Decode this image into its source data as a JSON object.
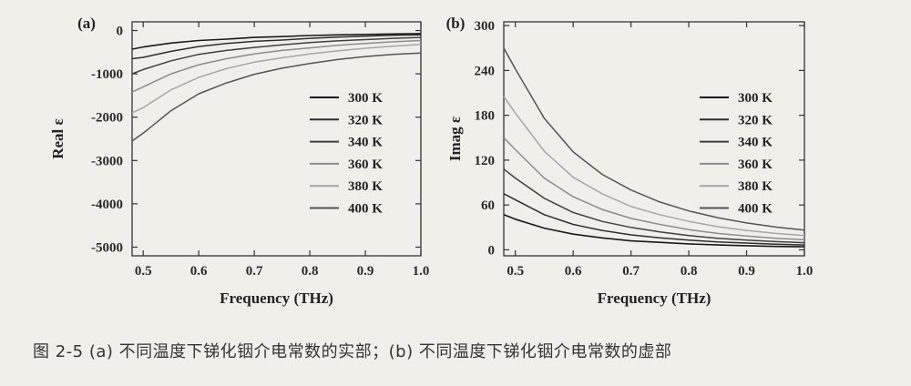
{
  "caption": "图 2-5 (a) 不同温度下锑化铟介电常数的实部；(b) 不同温度下锑化铟介电常数的虚部",
  "chart_data": [
    {
      "type": "line",
      "panel_label": "(a)",
      "xlabel": "Frequency (THz)",
      "ylabel": "Real ε",
      "xlim": [
        0.48,
        1.0
      ],
      "ylim": [
        -5200,
        200
      ],
      "xticks": [
        "0.5",
        "0.6",
        "0.7",
        "0.8",
        "0.9",
        "1.0"
      ],
      "yticks": [
        "0",
        "-1000",
        "-2000",
        "-3000",
        "-4000",
        "-5000"
      ],
      "legend_position": "center-right",
      "x": [
        0.48,
        0.5,
        0.55,
        0.6,
        0.65,
        0.7,
        0.75,
        0.8,
        0.85,
        0.9,
        0.95,
        1.0
      ],
      "series": [
        {
          "name": "300 K",
          "values": [
            -430,
            -380,
            -290,
            -230,
            -200,
            -160,
            -140,
            -115,
            -100,
            -90,
            -80,
            -70
          ]
        },
        {
          "name": "320 K",
          "values": [
            -650,
            -620,
            -480,
            -370,
            -300,
            -250,
            -220,
            -180,
            -150,
            -130,
            -110,
            -100
          ]
        },
        {
          "name": "340 K",
          "values": [
            -1000,
            -900,
            -700,
            -550,
            -460,
            -390,
            -330,
            -280,
            -240,
            -210,
            -180,
            -160
          ]
        },
        {
          "name": "360 K",
          "values": [
            -1420,
            -1300,
            -1000,
            -790,
            -650,
            -540,
            -460,
            -400,
            -340,
            -300,
            -260,
            -230
          ]
        },
        {
          "name": "380 K",
          "values": [
            -1900,
            -1780,
            -1370,
            -1080,
            -880,
            -730,
            -630,
            -540,
            -470,
            -410,
            -360,
            -320
          ]
        },
        {
          "name": "400 K",
          "values": [
            -2550,
            -2370,
            -1850,
            -1460,
            -1210,
            -1010,
            -870,
            -760,
            -670,
            -600,
            -550,
            -520
          ]
        }
      ]
    },
    {
      "type": "line",
      "panel_label": "(b)",
      "xlabel": "Frequency (THz)",
      "ylabel": "Imag ε",
      "xlim": [
        0.48,
        1.0
      ],
      "ylim": [
        -8,
        305
      ],
      "xticks": [
        "0.5",
        "0.6",
        "0.7",
        "0.8",
        "0.9",
        "1.0"
      ],
      "yticks": [
        "0",
        "60",
        "120",
        "180",
        "240",
        "300"
      ],
      "legend_position": "center-right",
      "x": [
        0.48,
        0.5,
        0.55,
        0.6,
        0.65,
        0.7,
        0.75,
        0.8,
        0.85,
        0.9,
        0.95,
        1.0
      ],
      "series": [
        {
          "name": "300 K",
          "values": [
            47,
            41,
            29,
            21,
            16,
            12,
            10,
            8,
            6.5,
            5.5,
            4.5,
            4
          ]
        },
        {
          "name": "320 K",
          "values": [
            75,
            67,
            47,
            34,
            26,
            20,
            16,
            13,
            10.5,
            9,
            7.5,
            6.5
          ]
        },
        {
          "name": "340 K",
          "values": [
            108,
            96,
            69,
            50,
            38,
            30,
            24,
            19,
            15.5,
            13,
            11,
            9.5
          ]
        },
        {
          "name": "360 K",
          "values": [
            150,
            134,
            96,
            71,
            54,
            42,
            34,
            27,
            22,
            18.5,
            15.5,
            13.5
          ]
        },
        {
          "name": "380 K",
          "values": [
            205,
            183,
            132,
            97,
            75,
            58,
            47,
            38,
            31,
            26,
            22,
            19
          ]
        },
        {
          "name": "400 K",
          "values": [
            270,
            242,
            176,
            131,
            101,
            80,
            64,
            52,
            43,
            36,
            30.5,
            26.5
          ]
        }
      ]
    }
  ]
}
